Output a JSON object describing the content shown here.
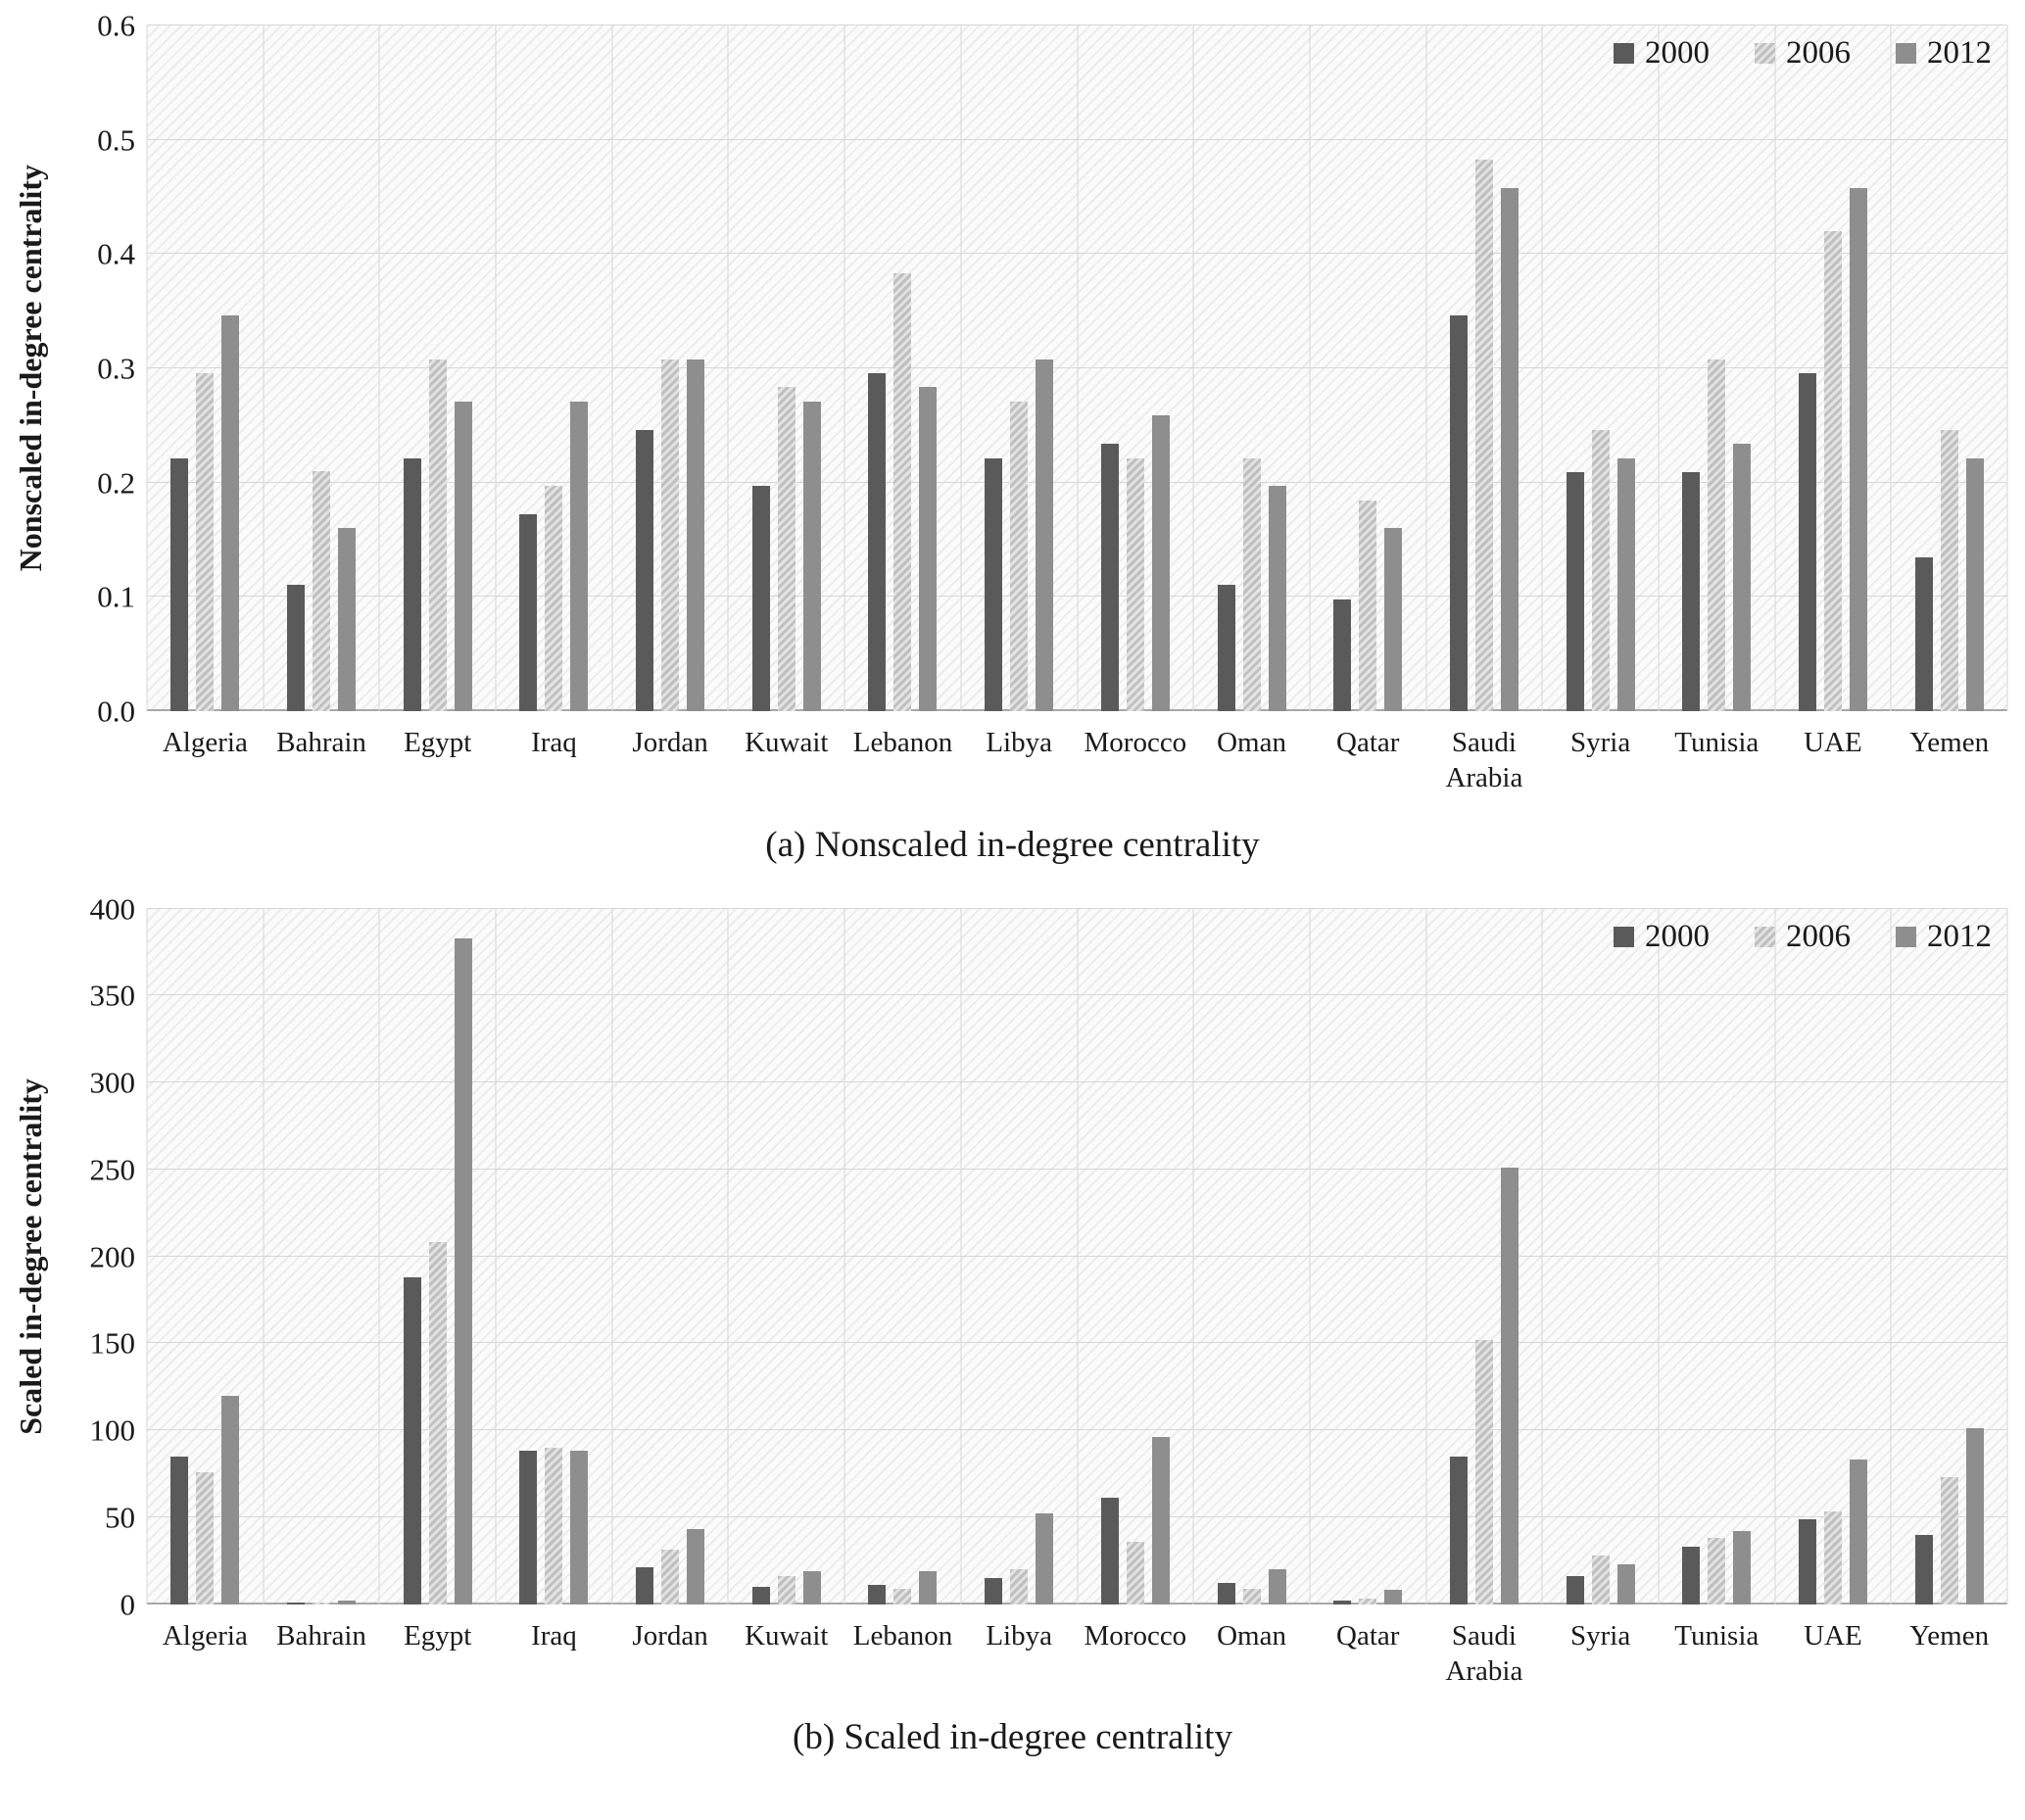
{
  "legend": [
    "2000",
    "2006",
    "2012"
  ],
  "chart_data": [
    {
      "type": "bar",
      "title": "(a) Nonscaled in-degree centrality",
      "caption": "(a) Nonscaled in-degree centrality",
      "ylabel": "Nonscaled in-degree centrality",
      "xlabel": "",
      "ylim": [
        0,
        0.6
      ],
      "yticks": [
        "0.0",
        "0.1",
        "0.2",
        "0.3",
        "0.4",
        "0.5",
        "0.6"
      ],
      "grid": true,
      "legend_position": "top-right",
      "categories": [
        "Algeria",
        "Bahrain",
        "Egypt",
        "Iraq",
        "Jordan",
        "Kuwait",
        "Lebanon",
        "Libya",
        "Morocco",
        "Oman",
        "Qatar",
        "Saudi Arabia",
        "Syria",
        "Tunisia",
        "UAE",
        "Yemen"
      ],
      "series": [
        {
          "name": "2000",
          "values": [
            0.221,
            0.111,
            0.221,
            0.172,
            0.246,
            0.197,
            0.296,
            0.221,
            0.234,
            0.111,
            0.098,
            0.346,
            0.209,
            0.209,
            0.296,
            0.135
          ]
        },
        {
          "name": "2006",
          "values": [
            0.296,
            0.21,
            0.308,
            0.197,
            0.308,
            0.284,
            0.383,
            0.271,
            0.221,
            0.221,
            0.184,
            0.483,
            0.246,
            0.308,
            0.42,
            0.246
          ]
        },
        {
          "name": "2012",
          "values": [
            0.346,
            0.16,
            0.271,
            0.271,
            0.308,
            0.271,
            0.284,
            0.308,
            0.259,
            0.197,
            0.16,
            0.458,
            0.221,
            0.234,
            0.458,
            0.221
          ]
        }
      ]
    },
    {
      "type": "bar",
      "title": "(b) Scaled in-degree centrality",
      "caption": "(b) Scaled in-degree centrality",
      "ylabel": "Scaled in-degree centrality",
      "xlabel": "",
      "ylim": [
        0,
        400
      ],
      "yticks": [
        "0",
        "50",
        "100",
        "150",
        "200",
        "250",
        "300",
        "350",
        "400"
      ],
      "grid": true,
      "legend_position": "top-right",
      "categories": [
        "Algeria",
        "Bahrain",
        "Egypt",
        "Iraq",
        "Jordan",
        "Kuwait",
        "Lebanon",
        "Libya",
        "Morocco",
        "Oman",
        "Qatar",
        "Saudi Arabia",
        "Syria",
        "Tunisia",
        "UAE",
        "Yemen"
      ],
      "series": [
        {
          "name": "2000",
          "values": [
            85,
            1,
            188,
            88,
            21,
            10,
            11,
            15,
            61,
            12,
            2,
            85,
            16,
            33,
            49,
            40
          ]
        },
        {
          "name": "2006",
          "values": [
            76,
            1,
            208,
            90,
            31,
            16,
            9,
            20,
            36,
            9,
            3,
            152,
            28,
            38,
            53,
            73
          ]
        },
        {
          "name": "2012",
          "values": [
            120,
            2,
            383,
            88,
            43,
            19,
            19,
            52,
            96,
            20,
            8,
            251,
            23,
            42,
            83,
            101
          ]
        }
      ]
    }
  ]
}
